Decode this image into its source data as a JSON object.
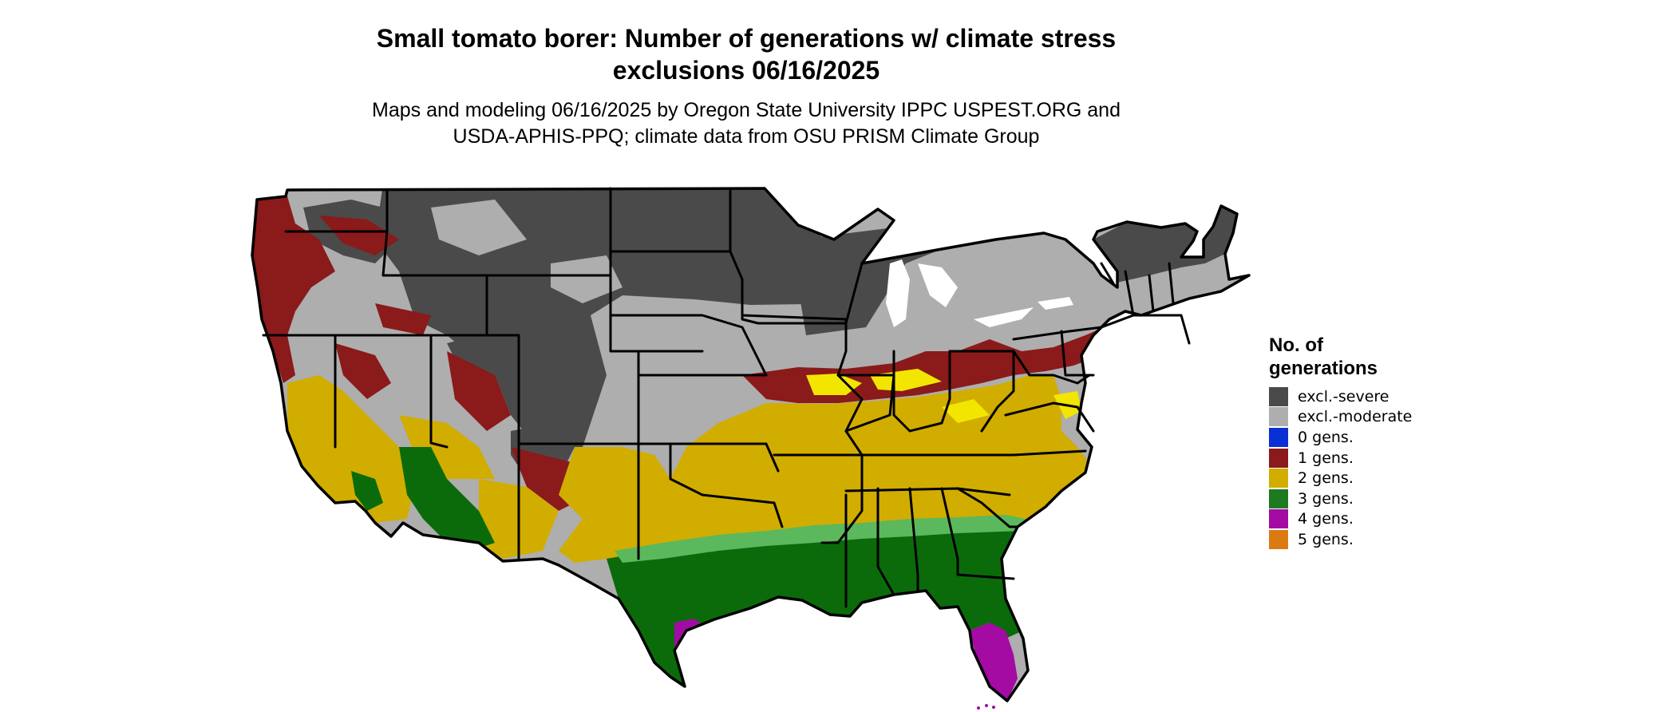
{
  "title": {
    "line1": "Small tomato borer: Number of generations w/ climate stress",
    "line2": "exclusions 06/16/2025"
  },
  "subtitle": {
    "line1": "Maps and modeling 06/16/2025 by Oregon State University IPPC USPEST.ORG and",
    "line2": "USDA-APHIS-PPQ; climate data from OSU PRISM Climate Group"
  },
  "legend": {
    "title_line1": "No. of",
    "title_line2": "generations",
    "items": [
      {
        "label": "excl.-severe",
        "color": "#4a4a4a"
      },
      {
        "label": "excl.-moderate",
        "color": "#aeaeae"
      },
      {
        "label": "0 gens.",
        "color": "#0a2fd6"
      },
      {
        "label": "1 gens.",
        "color": "#8b1a1a"
      },
      {
        "label": "2 gens.",
        "color": "#d1ad00"
      },
      {
        "label": "3 gens.",
        "color": "#1e7a1e"
      },
      {
        "label": "4 gens.",
        "color": "#a30ba3"
      },
      {
        "label": "5 gens.",
        "color": "#dc7a12"
      }
    ]
  },
  "colors": {
    "excl_severe": "#4a4a4a",
    "excl_moderate": "#aeaeae",
    "gen1": "#8b1a1a",
    "gen2": "#d1ad00",
    "gen3": "#0b6b0b",
    "gen3_light": "#5cb85c",
    "gen4": "#a30ba3",
    "gen2_bright": "#f2e600",
    "border": "#000000"
  }
}
